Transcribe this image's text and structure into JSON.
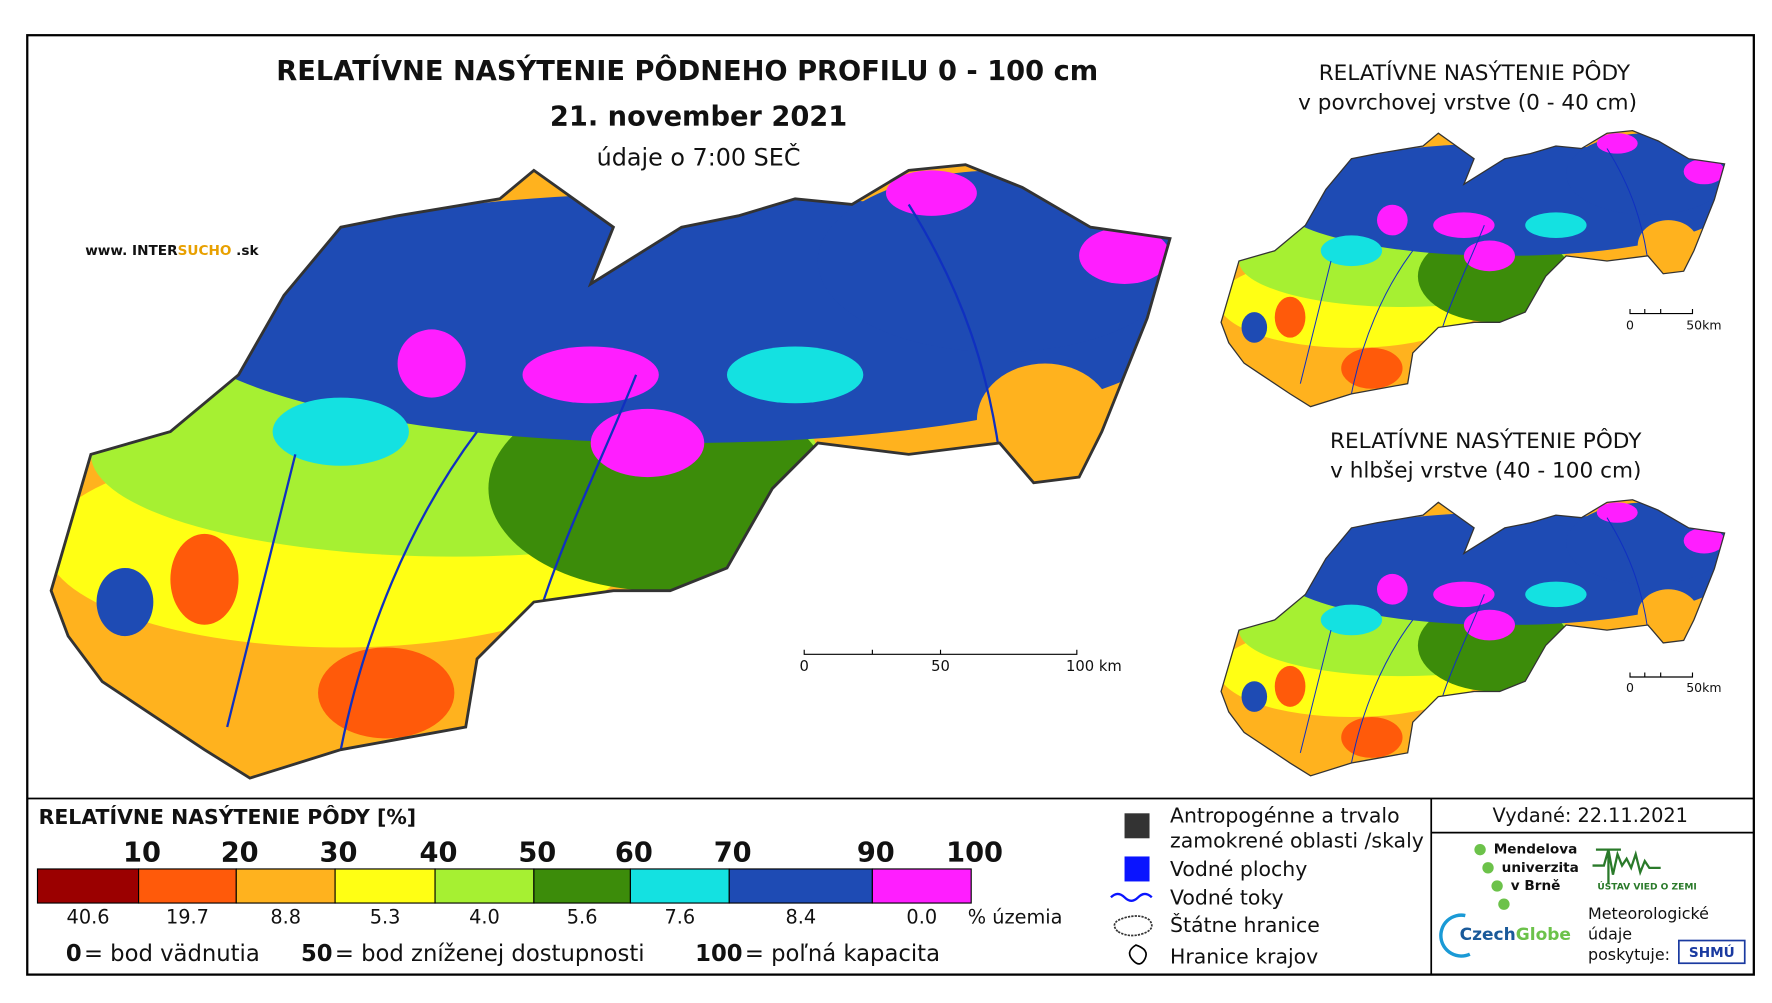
{
  "header": {
    "title": "RELATÍVNE NASÝTENIE PÔDNEHO PROFILU 0 - 100 cm",
    "date": "21. november 2021",
    "time": "údaje o 7:00 SEČ",
    "website": {
      "prefix": "www.  INTER",
      "brand": "SUCHO",
      "suffix": " .sk"
    }
  },
  "main_map": {
    "scale": [
      "0",
      "50",
      "100 km"
    ]
  },
  "surface_map": {
    "title": "RELATÍVNE NASÝTENIE PÔDY",
    "subtitle": "v povrchovej vrstve (0 - 40 cm)",
    "scale": [
      "0",
      "50km"
    ]
  },
  "deep_map": {
    "title": "RELATÍVNE NASÝTENIE PÔDY",
    "subtitle": "v hlbšej vrstve (40 - 100 cm)",
    "scale": [
      "0",
      "50km"
    ]
  },
  "legend": {
    "title": "RELATÍVNE NASÝTENIE PÔDY [%]",
    "breaks": [
      "10",
      "20",
      "30",
      "40",
      "50",
      "60",
      "70",
      "90",
      "100"
    ],
    "classes": [
      {
        "color": "#9b0000",
        "share": "40.6"
      },
      {
        "color": "#ff5a0a",
        "share": "19.7"
      },
      {
        "color": "#ffb21e",
        "share": "8.8"
      },
      {
        "color": "#ffff14",
        "share": "5.3"
      },
      {
        "color": "#a6f032",
        "share": "4.0"
      },
      {
        "color": "#3c8c0a",
        "share": "5.6"
      },
      {
        "color": "#14e1e1",
        "share": "7.6"
      },
      {
        "color": "#1e4bb4",
        "share": "8.4"
      },
      {
        "color": "#ff1eff",
        "share": "0.0"
      }
    ],
    "share_unit": "% územia",
    "definitions": [
      {
        "value": "0",
        "text": "= bod vädnutia"
      },
      {
        "value": "50",
        "text": "= bod zníženej dostupnosti"
      },
      {
        "value": "100",
        "text": "= poľná kapacita"
      }
    ]
  },
  "symbols": {
    "anthropogenic": [
      "Antropogénne a trvalo",
      "zamokrené oblasti /skaly"
    ],
    "water_bodies": "Vodné plochy",
    "rivers": "Vodné toky",
    "state_border": "Štátne hranice",
    "region_border": "Hranice krajov"
  },
  "issued": "Vydané: 22.11.2021",
  "credits": {
    "mendel": [
      "Mendelova",
      "univerzita",
      "v Brně"
    ],
    "ustav": "ÚSTAV VIED O ZEMI",
    "czechglobe": {
      "a": "Czech",
      "b": "Globe"
    },
    "meteo": [
      "Meteorologické",
      "údaje",
      "poskytuje:"
    ],
    "shmu": "SHMÚ"
  }
}
